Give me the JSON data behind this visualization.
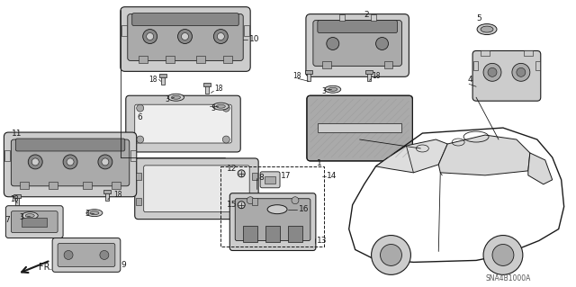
{
  "fig_width": 6.4,
  "fig_height": 3.19,
  "dpi": 100,
  "bg": "#ffffff",
  "diagram_code": "SNA4B1000A",
  "lc": "#1a1a1a",
  "gray1": "#888888",
  "gray2": "#aaaaaa",
  "gray3": "#cccccc",
  "gray4": "#444444"
}
